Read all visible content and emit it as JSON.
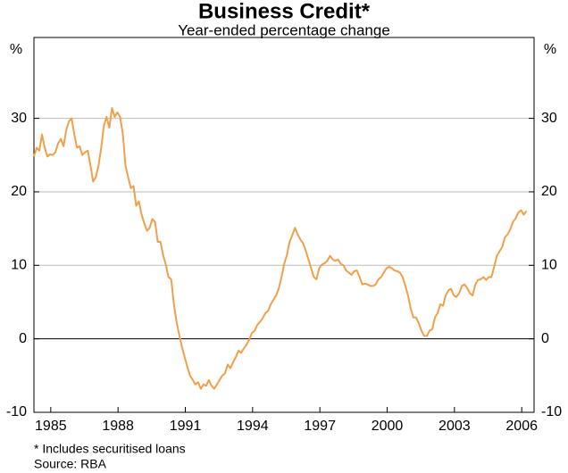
{
  "chart_data": {
    "type": "line",
    "title": "Business Credit*",
    "subtitle": "Year-ended percentage change",
    "y_unit": "%",
    "notes": [
      "*  Includes securitised loans",
      "Source: RBA"
    ],
    "x": [
      1984.25,
      1984.37,
      1984.49,
      1984.61,
      1984.73,
      1984.85,
      1984.97,
      1985.09,
      1985.21,
      1985.33,
      1985.45,
      1985.57,
      1985.69,
      1985.81,
      1985.93,
      1986.05,
      1986.17,
      1986.29,
      1986.41,
      1986.53,
      1986.65,
      1986.77,
      1986.89,
      1987.01,
      1987.13,
      1987.25,
      1987.37,
      1987.49,
      1987.61,
      1987.73,
      1987.85,
      1987.97,
      1988.09,
      1988.21,
      1988.33,
      1988.45,
      1988.57,
      1988.69,
      1988.81,
      1988.93,
      1989.05,
      1989.17,
      1989.29,
      1989.41,
      1989.53,
      1989.65,
      1989.77,
      1989.89,
      1990.01,
      1990.13,
      1990.25,
      1990.37,
      1990.49,
      1990.61,
      1990.73,
      1990.85,
      1990.97,
      1991.09,
      1991.21,
      1991.33,
      1991.45,
      1991.57,
      1991.69,
      1991.81,
      1991.93,
      1992.05,
      1992.17,
      1992.29,
      1992.41,
      1992.53,
      1992.65,
      1992.77,
      1992.89,
      1993.01,
      1993.13,
      1993.25,
      1993.37,
      1993.49,
      1993.61,
      1993.73,
      1993.85,
      1993.97,
      1994.09,
      1994.21,
      1994.33,
      1994.45,
      1994.57,
      1994.69,
      1994.81,
      1994.93,
      1995.05,
      1995.17,
      1995.29,
      1995.41,
      1995.53,
      1995.65,
      1995.77,
      1995.89,
      1996.01,
      1996.13,
      1996.25,
      1996.37,
      1996.49,
      1996.61,
      1996.73,
      1996.85,
      1996.97,
      1997.09,
      1997.21,
      1997.33,
      1997.45,
      1997.57,
      1997.69,
      1997.81,
      1997.93,
      1998.05,
      1998.17,
      1998.29,
      1998.41,
      1998.53,
      1998.65,
      1998.77,
      1998.89,
      1999.01,
      1999.13,
      1999.25,
      1999.37,
      1999.49,
      1999.61,
      1999.73,
      1999.85,
      1999.97,
      2000.09,
      2000.21,
      2000.33,
      2000.45,
      2000.57,
      2000.69,
      2000.81,
      2000.93,
      2001.05,
      2001.17,
      2001.29,
      2001.41,
      2001.53,
      2001.65,
      2001.77,
      2001.89,
      2002.01,
      2002.13,
      2002.25,
      2002.37,
      2002.49,
      2002.61,
      2002.73,
      2002.85,
      2002.97,
      2003.09,
      2003.21,
      2003.33,
      2003.45,
      2003.57,
      2003.69,
      2003.81,
      2003.93,
      2004.05,
      2004.17,
      2004.29,
      2004.41,
      2004.53,
      2004.65,
      2004.77,
      2004.89,
      2005.01,
      2005.13,
      2005.25,
      2005.37,
      2005.49,
      2005.61,
      2005.73,
      2005.85,
      2005.97,
      2006.09,
      2006.21
    ],
    "series": [
      {
        "name": "Business credit",
        "color": "#f0a04b",
        "values": [
          24.8,
          26.0,
          25.6,
          27.8,
          26.0,
          24.8,
          25.1,
          25.0,
          25.4,
          26.6,
          27.2,
          26.2,
          28.4,
          29.6,
          30.0,
          27.8,
          26.0,
          26.2,
          25.0,
          25.4,
          25.6,
          23.6,
          21.4,
          22.0,
          23.6,
          26.0,
          29.0,
          30.2,
          28.7,
          31.4,
          30.2,
          30.8,
          30.2,
          28.0,
          23.6,
          22.0,
          20.5,
          20.8,
          18.1,
          18.7,
          16.9,
          15.7,
          14.7,
          15.1,
          16.3,
          15.9,
          13.2,
          13.2,
          11.4,
          10.1,
          8.4,
          8.1,
          4.7,
          2.3,
          0.5,
          -1.1,
          -2.5,
          -3.8,
          -5.0,
          -5.6,
          -6.2,
          -5.9,
          -6.8,
          -6.2,
          -6.4,
          -5.6,
          -6.4,
          -6.8,
          -6.2,
          -5.6,
          -5.0,
          -4.7,
          -3.5,
          -4.0,
          -3.2,
          -2.5,
          -1.6,
          -1.9,
          -1.3,
          -0.8,
          -0.1,
          0.8,
          1.1,
          1.9,
          2.3,
          2.8,
          3.5,
          3.8,
          4.7,
          5.3,
          5.9,
          6.9,
          8.4,
          10.2,
          11.4,
          13.2,
          14.1,
          15.1,
          14.2,
          13.5,
          13.0,
          12.0,
          10.8,
          9.6,
          8.4,
          8.1,
          9.6,
          10.1,
          10.3,
          10.6,
          11.3,
          10.8,
          10.6,
          10.8,
          10.2,
          10.0,
          9.3,
          9.0,
          8.7,
          9.2,
          9.3,
          8.4,
          7.4,
          7.5,
          7.4,
          7.2,
          7.2,
          7.4,
          8.1,
          8.4,
          9.0,
          9.6,
          9.8,
          9.6,
          9.3,
          9.2,
          9.0,
          8.4,
          7.2,
          5.9,
          4.1,
          2.9,
          2.9,
          2.1,
          1.1,
          0.4,
          0.4,
          1.1,
          1.3,
          2.9,
          3.5,
          4.7,
          4.5,
          5.9,
          6.6,
          6.8,
          5.9,
          5.7,
          6.2,
          7.2,
          7.4,
          6.9,
          6.2,
          5.9,
          7.4,
          8.0,
          8.1,
          8.4,
          8.0,
          8.4,
          8.4,
          9.8,
          11.3,
          11.9,
          12.5,
          13.8,
          14.2,
          14.9,
          15.9,
          16.4,
          17.2,
          17.5,
          16.9,
          17.4
        ]
      }
    ],
    "xlim": [
      1984.25,
      2006.55
    ],
    "xticks": [
      1985,
      1988,
      1991,
      1994,
      1997,
      2000,
      2003,
      2006
    ],
    "ylim": [
      -10,
      41
    ],
    "yticks": [
      -10,
      0,
      10,
      20,
      30
    ],
    "grid": true
  }
}
